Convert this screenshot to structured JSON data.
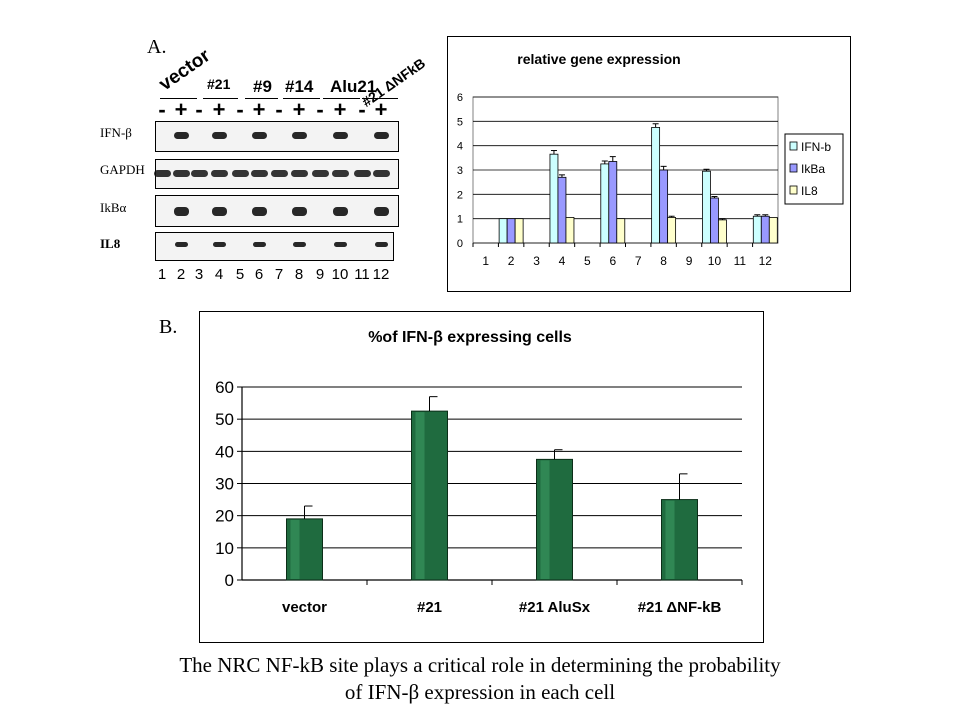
{
  "panel_a": {
    "letter": "A.",
    "groups": [
      "vector",
      "#21",
      "#9",
      "#14",
      "Alu21",
      "#21 ΔNFkB"
    ],
    "signs": [
      "-",
      "+",
      "-",
      "+",
      "-",
      "+",
      "-",
      "+",
      "-",
      "+",
      "-",
      "+"
    ],
    "row_labels": [
      "IFN-β",
      "GAPDH",
      "IkBα",
      "IL8"
    ],
    "lane_numbers": [
      "1",
      "2",
      "3",
      "4",
      "5",
      "6",
      "7",
      "8",
      "9",
      "10",
      "11",
      "12"
    ]
  },
  "panel_b": {
    "letter": "B."
  },
  "caption": {
    "line1": "The NRC NF-kB site plays a critical role in determining the probability",
    "line2": "of IFN-β expression in each cell"
  },
  "chart_data": [
    {
      "type": "bar",
      "title": "relative gene expression",
      "categories": [
        "1",
        "2",
        "3",
        "4",
        "5",
        "6",
        "7",
        "8",
        "9",
        "10",
        "11",
        "12"
      ],
      "ylim": [
        0,
        6
      ],
      "yticks": [
        "0",
        "1",
        "2",
        "3",
        "4",
        "5",
        "6"
      ],
      "grid": true,
      "legend_position": "right",
      "series": [
        {
          "name": "IFN-b",
          "color": "#ccffff",
          "values": [
            null,
            1.0,
            null,
            3.65,
            null,
            3.25,
            null,
            4.75,
            null,
            2.95,
            null,
            1.1
          ],
          "errors": [
            null,
            0,
            null,
            0.15,
            null,
            0.12,
            null,
            0.15,
            null,
            0.08,
            null,
            0.06
          ]
        },
        {
          "name": "IkBa",
          "color": "#9999ff",
          "values": [
            null,
            1.0,
            null,
            2.7,
            null,
            3.35,
            null,
            3.0,
            null,
            1.85,
            null,
            1.1
          ],
          "errors": [
            null,
            0,
            null,
            0.1,
            null,
            0.2,
            null,
            0.15,
            null,
            0.06,
            null,
            0.06
          ]
        },
        {
          "name": "IL8",
          "color": "#ffffcc",
          "values": [
            null,
            1.0,
            null,
            1.05,
            null,
            1.0,
            null,
            1.05,
            null,
            0.95,
            null,
            1.05
          ],
          "errors": [
            null,
            0,
            null,
            0,
            null,
            0,
            null,
            0.05,
            null,
            0.05,
            null,
            0
          ]
        }
      ]
    },
    {
      "type": "bar",
      "title": "%of IFN-β expressing cells",
      "categories": [
        "vector",
        "#21",
        "#21 AluSx",
        "#21 ΔNF-kB"
      ],
      "ylim": [
        0,
        60
      ],
      "yticks": [
        "0",
        "10",
        "20",
        "30",
        "40",
        "50",
        "60"
      ],
      "grid": true,
      "series": [
        {
          "color": "#1f6b3f",
          "values": [
            19,
            52.5,
            37.5,
            25
          ],
          "errors": [
            4,
            4.5,
            3,
            8
          ]
        }
      ]
    }
  ]
}
